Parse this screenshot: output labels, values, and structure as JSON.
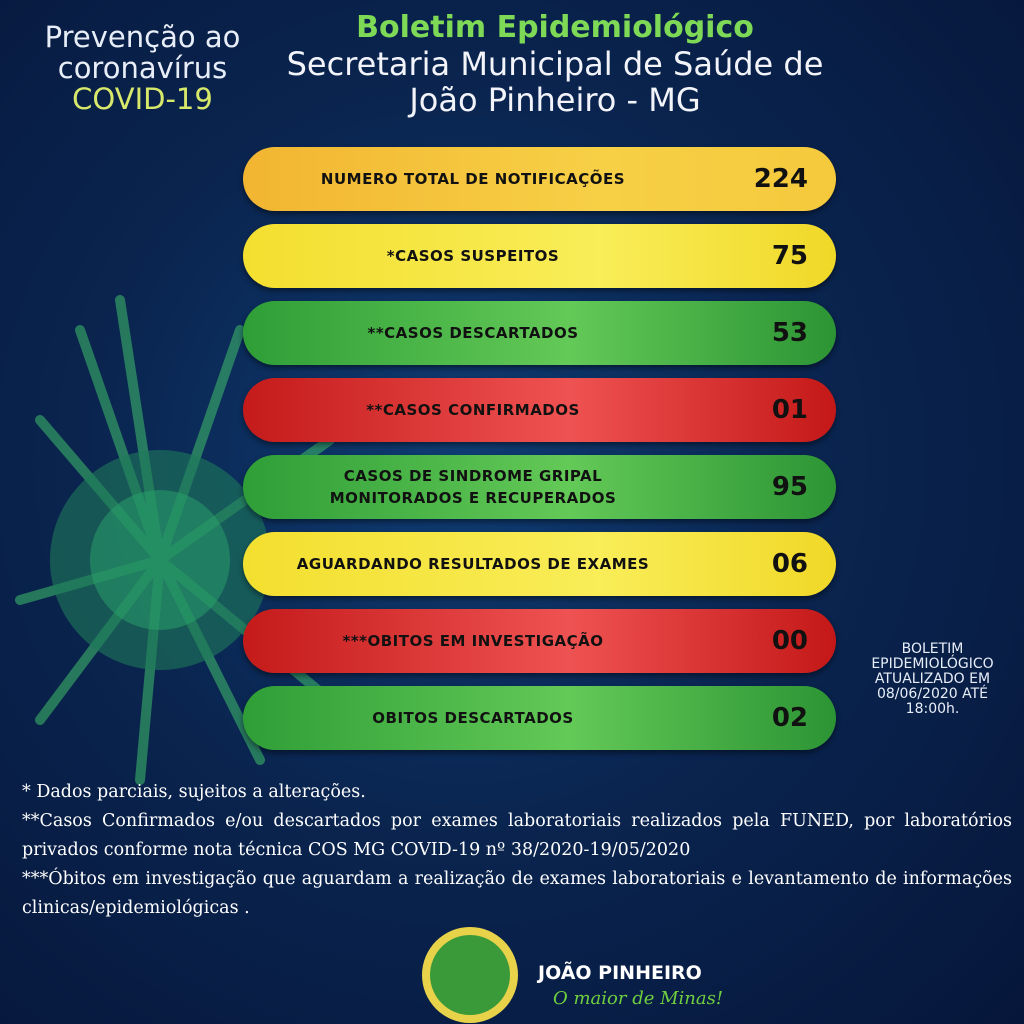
{
  "header": {
    "campaign": [
      "Prevenção ao",
      "coronavírus",
      "COVID-19"
    ],
    "title": "Boletim Epidemiológico",
    "subtitle": [
      "Secretaria Municipal de Saúde de",
      "João Pinheiro - MG"
    ]
  },
  "rows": [
    {
      "label": [
        "NUMERO TOTAL DE NOTIFICAÇÕES"
      ],
      "value": "224"
    },
    {
      "label": [
        "*CASOS SUSPEITOS"
      ],
      "value": "75"
    },
    {
      "label": [
        "**CASOS DESCARTADOS"
      ],
      "value": "53"
    },
    {
      "label": [
        "**CASOS CONFIRMADOS"
      ],
      "value": "01"
    },
    {
      "label": [
        "CASOS DE SINDROME GRIPAL",
        "MONITORADOS E RECUPERADOS"
      ],
      "value": "95"
    },
    {
      "label": [
        "AGUARDANDO RESULTADOS DE EXAMES"
      ],
      "value": "06"
    },
    {
      "label": [
        "***OBITOS EM INVESTIGAÇÃO"
      ],
      "value": "00"
    },
    {
      "label": [
        "OBITOS DESCARTADOS"
      ],
      "value": "02"
    }
  ],
  "update_note": [
    "BOLETIM",
    "EPIDEMIOLÓGICO",
    "ATUALIZADO EM",
    "08/06/2020 ATÉ",
    "18:00h."
  ],
  "footnotes": [
    "* Dados parciais, sujeitos a alterações.",
    "**Casos Confirmados e/ou descartados por exames laboratoriais realizados pela FUNED, por laboratórios privados conforme nota técnica COS MG COVID-19 nº 38/2020-19/05/2020",
    "***Óbitos em investigação que aguardam a realização de exames laboratoriais e levantamento de informações clinicas/epidemiológicas ."
  ],
  "logo": {
    "name": "JOÃO PINHEIRO",
    "slogan": "O maior de Minas!"
  }
}
